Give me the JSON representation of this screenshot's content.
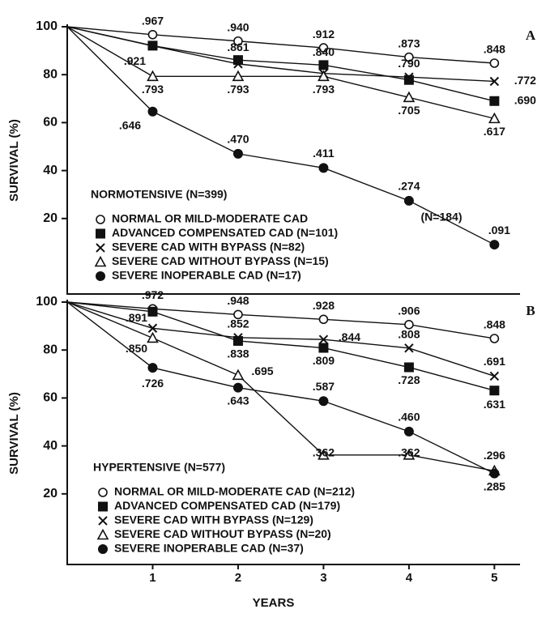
{
  "chart_data": [
    {
      "type": "line",
      "panel": "A",
      "title": "NORMOTENSIVE (N=399)",
      "y_label": "SURVIVAL (%)",
      "annotation": "(N=184)",
      "x": [
        0,
        1,
        2,
        3,
        4,
        5
      ],
      "xlim": [
        0,
        5.3
      ],
      "ylim": [
        0,
        100
      ],
      "yticks": [
        20,
        40,
        60,
        80,
        100
      ],
      "series": [
        {
          "name": "NORMAL OR MILD-MODERATE CAD",
          "marker": "open-circle",
          "color": "#111111",
          "values": [
            100,
            96.7,
            94.0,
            91.2,
            87.3,
            84.8
          ],
          "value_labels": [
            null,
            ".967",
            ".940",
            ".912",
            ".873",
            ".848"
          ]
        },
        {
          "name": "ADVANCED COMPENSATED CAD (N=101)",
          "marker": "filled-square",
          "color": "#111111",
          "values": [
            100,
            92.1,
            86.1,
            84.0,
            77.8,
            69.0
          ],
          "value_labels": [
            null,
            ".921",
            ".861",
            ".840",
            null,
            ".690"
          ]
        },
        {
          "name": "SEVERE CAD WITH BYPASS (N=82)",
          "marker": "cross",
          "color": "#111111",
          "values": [
            100,
            92.0,
            84.5,
            80.5,
            79.0,
            77.2
          ],
          "value_labels": [
            null,
            null,
            null,
            null,
            ".790",
            ".772"
          ]
        },
        {
          "name": "SEVERE CAD WITHOUT BYPASS (N=15)",
          "marker": "open-triangle",
          "color": "#111111",
          "values": [
            100,
            79.3,
            79.3,
            79.3,
            70.5,
            61.7
          ],
          "value_labels": [
            null,
            ".793",
            ".793",
            ".793",
            ".705",
            ".617"
          ]
        },
        {
          "name": "SEVERE INOPERABLE CAD (N=17)",
          "marker": "filled-circle",
          "color": "#111111",
          "values": [
            100,
            64.6,
            47.0,
            41.1,
            27.4,
            9.1
          ],
          "value_labels": [
            null,
            ".646",
            ".470",
            ".411",
            ".274",
            ".091"
          ]
        }
      ]
    },
    {
      "type": "line",
      "panel": "B",
      "title": "HYPERTENSIVE (N=577)",
      "y_label": "SURVIVAL (%)",
      "x_label": "YEARS",
      "x": [
        0,
        1,
        2,
        3,
        4,
        5
      ],
      "xlim": [
        0,
        5.3
      ],
      "ylim": [
        0,
        100
      ],
      "yticks": [
        20,
        40,
        60,
        80,
        100
      ],
      "xticks": [
        1,
        2,
        3,
        4,
        5
      ],
      "series": [
        {
          "name": "NORMAL OR MILD-MODERATE CAD (N=212)",
          "marker": "open-circle",
          "color": "#111111",
          "values": [
            100,
            97.2,
            94.8,
            92.8,
            90.6,
            84.8
          ],
          "value_labels": [
            null,
            ".972",
            ".948",
            ".928",
            ".906",
            ".848"
          ]
        },
        {
          "name": "ADVANCED COMPENSATED CAD (N=179)",
          "marker": "filled-square",
          "color": "#111111",
          "values": [
            100,
            96.0,
            83.8,
            80.9,
            72.8,
            63.1
          ],
          "value_labels": [
            null,
            null,
            ".838",
            ".809",
            ".728",
            ".631"
          ]
        },
        {
          "name": "SEVERE CAD WITH BYPASS (N=129)",
          "marker": "cross",
          "color": "#111111",
          "values": [
            100,
            89.1,
            85.2,
            84.4,
            80.8,
            69.1
          ],
          "value_labels": [
            null,
            ".891",
            ".852",
            ".844",
            ".808",
            ".691"
          ]
        },
        {
          "name": "SEVERE CAD WITHOUT BYPASS (N=20)",
          "marker": "open-triangle",
          "color": "#111111",
          "values": [
            100,
            85.0,
            69.5,
            36.2,
            36.2,
            29.6
          ],
          "value_labels": [
            null,
            ".850",
            ".695",
            ".362",
            ".362",
            ".296"
          ]
        },
        {
          "name": "SEVERE INOPERABLE CAD (N=37)",
          "marker": "filled-circle",
          "color": "#111111",
          "values": [
            100,
            72.6,
            64.3,
            58.7,
            46.0,
            28.5
          ],
          "value_labels": [
            null,
            ".726",
            ".643",
            ".587",
            ".460",
            ".285"
          ]
        }
      ]
    }
  ]
}
